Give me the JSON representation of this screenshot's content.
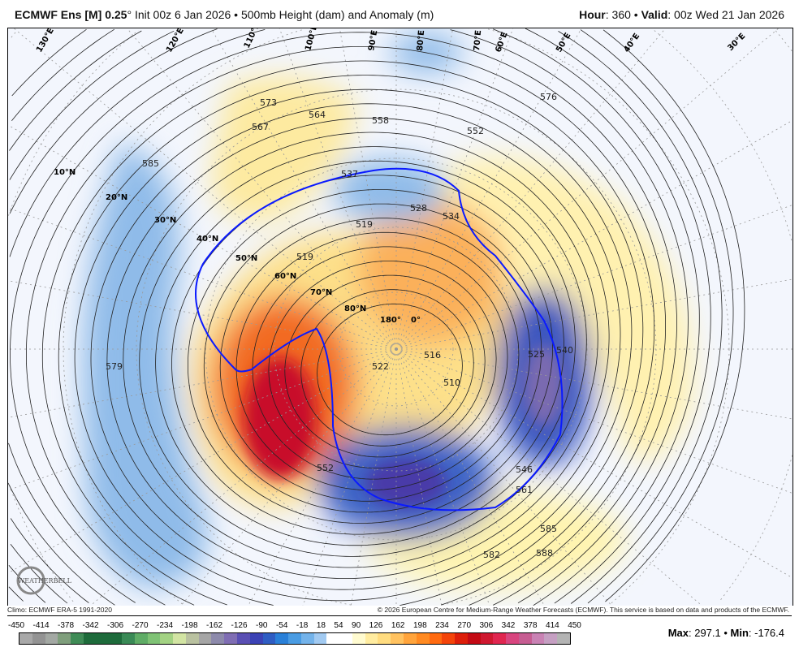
{
  "header": {
    "model": "ECMWF Ens [M] 0.25",
    "degree": "°",
    "init": " Init 00z 6 Jan 2026 • 500mb Height (dam) and Anomaly (m)",
    "hour_label": "Hour",
    "hour_value": ": 360 • ",
    "valid_label": "Valid",
    "valid_value": ": 00z Wed 21 Jan 2026"
  },
  "map": {
    "lat_labels": [
      "10°N",
      "20°N",
      "30°N",
      "40°N",
      "50°N",
      "60°N",
      "70°N",
      "80°N"
    ],
    "lon_labels": [
      "130°E",
      "120°E",
      "110°E",
      "100°E",
      "90°E",
      "80°E",
      "70°E",
      "60°E",
      "50°E",
      "40°E",
      "30°E",
      "180°",
      "0°"
    ],
    "contour_labels": [
      "585",
      "579",
      "573",
      "564",
      "567",
      "558",
      "552",
      "537",
      "519",
      "519",
      "528",
      "534",
      "525",
      "540",
      "522",
      "516",
      "510",
      "546",
      "561",
      "585",
      "588",
      "582",
      "576",
      "552"
    ],
    "highlight_contour": "540",
    "highlight_color": "#0a1aff",
    "logo_text": "WEATHERBELL"
  },
  "footer": {
    "climo": "Climo: ECMWF ERA-5 1991-2020",
    "copyright": "© 2026 European Centre for Medium-Range Weather Forecasts (ECMWF). This service is based on data and products of the ECMWF."
  },
  "colorbar": {
    "labels": [
      "-450",
      "-414",
      "-378",
      "-342",
      "-306",
      "-270",
      "-234",
      "-198",
      "-162",
      "-126",
      "-90",
      "-54",
      "-18",
      "18",
      "54",
      "90",
      "126",
      "162",
      "198",
      "234",
      "270",
      "306",
      "342",
      "378",
      "414",
      "450"
    ],
    "colors": [
      "#a8a8a8",
      "#939393",
      "#a3a8a3",
      "#7f9e7c",
      "#3f8b56",
      "#1e6b3b",
      "#1e6b3b",
      "#1e6b3b",
      "#3a8a56",
      "#5fac66",
      "#7fc275",
      "#a3d283",
      "#d2e4a3",
      "#b9c1a0",
      "#a5a5a5",
      "#8d8aab",
      "#7f6db3",
      "#5a4fb3",
      "#3b42b5",
      "#2f5dc3",
      "#2a80d8",
      "#4a9ce3",
      "#74b3ea",
      "#a2caf1",
      "#ffffff",
      "#ffffff",
      "#fffbd0",
      "#ffeca0",
      "#ffdc80",
      "#ffc260",
      "#ffa43c",
      "#ff8a22",
      "#ff6a10",
      "#f4440a",
      "#dd1e0a",
      "#c30a14",
      "#cf1830",
      "#e02650",
      "#d8457f",
      "#c65d92",
      "#c982b4",
      "#c59fc2",
      "#b3b3b3"
    ]
  },
  "stats": {
    "max_label": "Max",
    "max_value": ": 297.1 • ",
    "min_label": "Min",
    "min_value": ": -176.4"
  }
}
